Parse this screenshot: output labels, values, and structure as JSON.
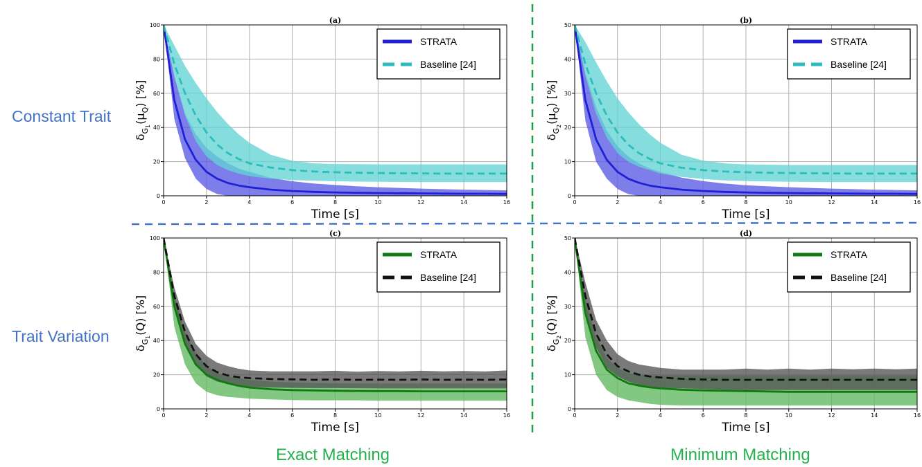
{
  "figure": {
    "row_labels": [
      "Constant Trait",
      "Trait Variation"
    ],
    "col_labels": [
      "Exact Matching",
      "Minimum Matching"
    ],
    "colors": {
      "row_label": "#4472c4",
      "col_label": "#22b14c",
      "divider_vertical": "#1a9e4a",
      "divider_horizontal": "#4472c4",
      "grid": "#b0b0b0"
    }
  },
  "chart_data": [
    {
      "panel": "(a)",
      "type": "line",
      "xlabel": "Time [s]",
      "ylabel_base": "δ",
      "ylabel_sub": "G",
      "ylabel_subsub": "1",
      "ylabel_arg": "(μ",
      "ylabel_argsub": "Q",
      "ylabel_tail": ") [%]",
      "xlim": [
        0,
        16
      ],
      "ylim": [
        0,
        100
      ],
      "xticks": [
        0,
        2,
        4,
        6,
        8,
        10,
        12,
        14,
        16
      ],
      "yticks": [
        0,
        20,
        40,
        60,
        80,
        100
      ],
      "grid": true,
      "legend_position": "top-right",
      "x": [
        0,
        0.5,
        1,
        1.5,
        2,
        2.5,
        3,
        3.5,
        4,
        5,
        6,
        7,
        8,
        9,
        10,
        11,
        12,
        13,
        14,
        15,
        16
      ],
      "series": [
        {
          "name": "STRATA",
          "color": "#1f1fd6",
          "band_color": "#5a5ae6",
          "style": "solid",
          "mean": [
            100,
            56,
            33,
            21,
            14,
            10,
            7.5,
            6,
            5,
            3.6,
            2.8,
            2.3,
            2,
            1.8,
            1.6,
            1.5,
            1.4,
            1.3,
            1.2,
            1.2,
            1.1
          ],
          "upper": [
            100,
            70,
            48,
            36,
            28,
            23,
            19,
            16,
            14,
            10.5,
            8.5,
            7.2,
            6.3,
            5.6,
            5,
            4.6,
            4.2,
            3.9,
            3.6,
            3.4,
            3.2
          ],
          "lower": [
            100,
            45,
            22,
            10,
            4,
            1,
            0,
            0,
            0,
            0,
            0,
            0,
            0,
            0,
            0,
            0,
            0,
            0,
            0,
            0,
            0
          ]
        },
        {
          "name": "Baseline [24]",
          "color": "#2cbcbc",
          "band_color": "#63d3d3",
          "style": "dashed",
          "mean": [
            100,
            77,
            60,
            47,
            37,
            30,
            25,
            21.5,
            19,
            16.5,
            15,
            14.2,
            13.8,
            13.5,
            13.3,
            13.2,
            13.1,
            13,
            13,
            13,
            13
          ],
          "upper": [
            100,
            88,
            76,
            66,
            57,
            49,
            42,
            36,
            31,
            24,
            20.5,
            19,
            18.6,
            18.5,
            18.4,
            18.4,
            18.4,
            18.4,
            18.4,
            18.4,
            18.4
          ],
          "lower": [
            100,
            70,
            47,
            32,
            23,
            18,
            15,
            13,
            11.5,
            10,
            9.2,
            8.8,
            8.5,
            8.3,
            8.2,
            8.1,
            8,
            8,
            8,
            8,
            8
          ]
        }
      ]
    },
    {
      "panel": "(b)",
      "type": "line",
      "xlabel": "Time [s]",
      "ylabel_base": "δ",
      "ylabel_sub": "G",
      "ylabel_subsub": "2",
      "ylabel_arg": "(μ",
      "ylabel_argsub": "Q",
      "ylabel_tail": ") [%]",
      "xlim": [
        0,
        16
      ],
      "ylim": [
        0,
        50
      ],
      "xticks": [
        0,
        2,
        4,
        6,
        8,
        10,
        12,
        14,
        16
      ],
      "yticks": [
        0,
        10,
        20,
        30,
        40,
        50
      ],
      "grid": true,
      "legend_position": "top-right",
      "x": [
        0,
        0.5,
        1,
        1.5,
        2,
        2.5,
        3,
        3.5,
        4,
        5,
        6,
        7,
        8,
        9,
        10,
        11,
        12,
        13,
        14,
        15,
        16
      ],
      "series": [
        {
          "name": "STRATA",
          "color": "#1f1fd6",
          "band_color": "#5a5ae6",
          "style": "solid",
          "mean": [
            50,
            28,
            16.5,
            10.5,
            7,
            5,
            3.8,
            3,
            2.5,
            1.8,
            1.4,
            1.15,
            1,
            0.9,
            0.8,
            0.75,
            0.7,
            0.65,
            0.6,
            0.6,
            0.55
          ],
          "upper": [
            50,
            36,
            26,
            19,
            14.5,
            11.5,
            9.5,
            8,
            7,
            5.3,
            4.3,
            3.6,
            3.1,
            2.8,
            2.5,
            2.3,
            2.1,
            1.95,
            1.8,
            1.7,
            1.6
          ],
          "lower": [
            50,
            22,
            10,
            5,
            2,
            0.5,
            0,
            0,
            0,
            0,
            0,
            0,
            0,
            0,
            0,
            0,
            0,
            0,
            0,
            0,
            0
          ]
        },
        {
          "name": "Baseline [24]",
          "color": "#2cbcbc",
          "band_color": "#63d3d3",
          "style": "dashed",
          "mean": [
            50,
            38.5,
            30,
            23.5,
            18.5,
            15,
            12.5,
            10.8,
            9.5,
            8.2,
            7.5,
            7.1,
            6.9,
            6.75,
            6.65,
            6.6,
            6.55,
            6.5,
            6.5,
            6.5,
            6.5
          ],
          "upper": [
            50,
            45,
            39,
            33.5,
            28.5,
            24.5,
            21,
            18,
            15.5,
            12,
            10.3,
            9.5,
            9.2,
            9.1,
            9,
            9,
            9,
            9,
            9,
            9,
            9
          ],
          "lower": [
            50,
            35,
            24,
            17,
            12.5,
            10,
            8.5,
            7.5,
            6.5,
            5.5,
            4.9,
            4.5,
            4.3,
            4.2,
            4.1,
            4.05,
            4,
            4,
            4,
            4,
            4
          ]
        }
      ]
    },
    {
      "panel": "(c)",
      "type": "line",
      "xlabel": "Time [s]",
      "ylabel_base": "δ",
      "ylabel_sub": "G",
      "ylabel_subsub": "1",
      "ylabel_arg": "(Q",
      "ylabel_argsub": "",
      "ylabel_tail": ") [%]",
      "xlim": [
        0,
        16
      ],
      "ylim": [
        0,
        100
      ],
      "xticks": [
        0,
        2,
        4,
        6,
        8,
        10,
        12,
        14,
        16
      ],
      "yticks": [
        0,
        20,
        40,
        60,
        80,
        100
      ],
      "grid": true,
      "legend_position": "top-right",
      "x": [
        0,
        0.5,
        1,
        1.5,
        2,
        2.5,
        3,
        3.5,
        4,
        5,
        6,
        7,
        8,
        9,
        10,
        11,
        12,
        13,
        14,
        15,
        16
      ],
      "series": [
        {
          "name": "STRATA",
          "color": "#0f7a0f",
          "band_color": "#5fb95f",
          "style": "solid",
          "mean": [
            100,
            60,
            38,
            26,
            20,
            17,
            15,
            13.5,
            12.5,
            11.5,
            11,
            10.8,
            10.6,
            10.5,
            10.4,
            10.4,
            10.3,
            10.3,
            10.3,
            10.3,
            10.3
          ],
          "upper": [
            100,
            66,
            45,
            33,
            25,
            21,
            19,
            18,
            17,
            16,
            15.5,
            15.2,
            15,
            14.9,
            14.8,
            14.8,
            14.8,
            14.8,
            14.8,
            14.8,
            14.8
          ],
          "lower": [
            100,
            48,
            26,
            15,
            10,
            8,
            7,
            6.5,
            6,
            5.5,
            5.2,
            5,
            5,
            5,
            4.8,
            4.8,
            4.8,
            4.8,
            4.8,
            4.8,
            4.8
          ]
        },
        {
          "name": "Baseline [24]",
          "color": "#111111",
          "band_color": "#555555",
          "style": "dashed",
          "mean": [
            100,
            66,
            45,
            32,
            25,
            21.5,
            19.5,
            18.5,
            18,
            17.5,
            17.3,
            17,
            17.2,
            17,
            17.1,
            17,
            17.2,
            17,
            17.1,
            17,
            17.2
          ],
          "upper": [
            100,
            71,
            51,
            38,
            31,
            27,
            25,
            23.5,
            22.5,
            22,
            22,
            22,
            22.3,
            21.8,
            22.2,
            21.9,
            22.3,
            22,
            22.2,
            21.9,
            22.5
          ],
          "lower": [
            100,
            58,
            38,
            26,
            19,
            16,
            14.5,
            13.5,
            13,
            12.5,
            12.3,
            12.2,
            12.2,
            12.1,
            12,
            12,
            12,
            12,
            12,
            12,
            12
          ]
        }
      ]
    },
    {
      "panel": "(d)",
      "type": "line",
      "xlabel": "Time [s]",
      "ylabel_base": "δ",
      "ylabel_sub": "G",
      "ylabel_subsub": "2",
      "ylabel_arg": "(Q",
      "ylabel_argsub": "",
      "ylabel_tail": ") [%]",
      "xlim": [
        0,
        16
      ],
      "ylim": [
        0,
        50
      ],
      "xticks": [
        0,
        2,
        4,
        6,
        8,
        10,
        12,
        14,
        16
      ],
      "yticks": [
        0,
        10,
        20,
        30,
        40,
        50
      ],
      "grid": true,
      "legend_position": "top-right",
      "x": [
        0,
        0.5,
        1,
        1.5,
        2,
        2.5,
        3,
        3.5,
        4,
        5,
        6,
        7,
        8,
        9,
        10,
        11,
        12,
        13,
        14,
        15,
        16
      ],
      "series": [
        {
          "name": "STRATA",
          "color": "#0f7a0f",
          "band_color": "#5fb95f",
          "style": "solid",
          "mean": [
            50,
            28,
            17,
            11.5,
            9,
            7.5,
            6.8,
            6.3,
            6,
            5.6,
            5.4,
            5.3,
            5.2,
            5.1,
            5,
            5,
            5,
            5,
            5,
            5,
            5
          ],
          "upper": [
            50,
            32,
            21,
            15,
            12,
            10.5,
            10,
            9.8,
            9.8,
            9.8,
            9.8,
            9.8,
            9.8,
            9.8,
            9.8,
            9.8,
            9.8,
            9.8,
            9.8,
            9.8,
            9.8
          ],
          "lower": [
            50,
            21,
            10,
            5.5,
            3.5,
            2.5,
            2,
            1.5,
            1.2,
            1,
            1,
            1,
            1,
            1,
            1,
            1,
            1,
            1,
            1,
            1,
            1
          ]
        },
        {
          "name": "Baseline [24]",
          "color": "#111111",
          "band_color": "#555555",
          "style": "dashed",
          "mean": [
            50,
            33,
            22,
            16,
            12.5,
            11,
            10,
            9.5,
            9.2,
            8.8,
            8.6,
            8.5,
            8.5,
            8.5,
            8.5,
            8.5,
            8.5,
            8.5,
            8.5,
            8.5,
            8.5
          ],
          "upper": [
            50,
            37,
            26,
            20,
            16,
            14,
            13,
            12.5,
            12,
            11.5,
            11.5,
            11.5,
            11.8,
            11.5,
            11.8,
            11.5,
            11.8,
            11.6,
            11.8,
            11.6,
            11.8
          ],
          "lower": [
            50,
            28,
            18,
            12,
            9.5,
            8,
            7,
            6.5,
            6.2,
            6,
            5.8,
            5.6,
            5.5,
            5.5,
            5.5,
            5.5,
            5.5,
            5.5,
            5.5,
            5.5,
            5.5
          ]
        }
      ]
    }
  ]
}
